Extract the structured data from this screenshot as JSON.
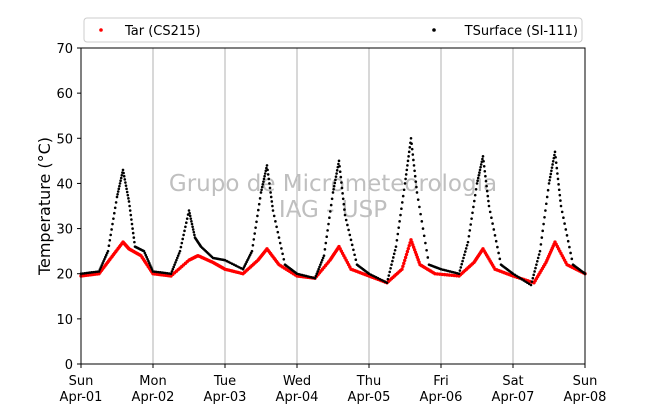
{
  "chart_data": {
    "type": "scatter",
    "title": "",
    "xlabel": "",
    "ylabel": "Temperature (°C)",
    "ylim": [
      0,
      70
    ],
    "yticks": [
      0,
      10,
      20,
      30,
      40,
      50,
      60,
      70
    ],
    "xlim": [
      "2018-04-01 00:00",
      "2018-04-08 00:00"
    ],
    "xticks": [
      {
        "day": "Sun",
        "date": "Apr-01"
      },
      {
        "day": "Mon",
        "date": "Apr-02"
      },
      {
        "day": "Tue",
        "date": "Apr-03"
      },
      {
        "day": "Wed",
        "date": "Apr-04"
      },
      {
        "day": "Thu",
        "date": "Apr-05"
      },
      {
        "day": "Fri",
        "date": "Apr-06"
      },
      {
        "day": "Sat",
        "date": "Apr-07"
      },
      {
        "day": "Sun",
        "date": "Apr-08"
      }
    ],
    "grid": "vertical",
    "legend": "top",
    "watermark": [
      "Grupo de Micrometeorologia",
      "IAG - USP"
    ],
    "series": [
      {
        "name": "Tar (CS215)",
        "color": "#ff0000",
        "x": [
          "Apr-01 00:00",
          "Apr-01 06:00",
          "Apr-01 10:00",
          "Apr-01 14:00",
          "Apr-01 16:00",
          "Apr-01 20:00",
          "Apr-02 00:00",
          "Apr-02 06:00",
          "Apr-02 12:00",
          "Apr-02 15:00",
          "Apr-02 20:00",
          "Apr-03 00:00",
          "Apr-03 06:00",
          "Apr-03 11:00",
          "Apr-03 14:00",
          "Apr-03 18:00",
          "Apr-04 00:00",
          "Apr-04 06:00",
          "Apr-04 11:00",
          "Apr-04 14:00",
          "Apr-04 18:00",
          "Apr-05 00:00",
          "Apr-05 06:00",
          "Apr-05 11:00",
          "Apr-05 14:00",
          "Apr-05 17:00",
          "Apr-05 22:00",
          "Apr-06 06:00",
          "Apr-06 11:00",
          "Apr-06 14:00",
          "Apr-06 18:00",
          "Apr-07 00:00",
          "Apr-07 07:00",
          "Apr-07 11:00",
          "Apr-07 14:00",
          "Apr-07 18:00",
          "Apr-08 00:00"
        ],
        "y": [
          19.5,
          20.0,
          23.5,
          27.0,
          25.5,
          24.0,
          20.0,
          19.5,
          23.0,
          24.0,
          22.5,
          21.0,
          20.0,
          23.0,
          25.5,
          22.0,
          19.5,
          19.0,
          23.0,
          26.0,
          21.0,
          19.5,
          18.0,
          21.0,
          27.5,
          22.0,
          20.0,
          19.5,
          22.5,
          25.5,
          21.0,
          19.5,
          18.0,
          22.5,
          27.0,
          22.0,
          20.0
        ]
      },
      {
        "name": "TSurface (SI-111)",
        "color": "#000000",
        "x": [
          "Apr-01 00:00",
          "Apr-01 06:00",
          "Apr-01 09:00",
          "Apr-01 12:00",
          "Apr-01 14:00",
          "Apr-01 16:00",
          "Apr-01 18:00",
          "Apr-01 21:00",
          "Apr-02 00:00",
          "Apr-02 06:00",
          "Apr-02 09:00",
          "Apr-02 12:00",
          "Apr-02 14:00",
          "Apr-02 16:00",
          "Apr-02 20:00",
          "Apr-03 00:00",
          "Apr-03 06:00",
          "Apr-03 09:00",
          "Apr-03 12:00",
          "Apr-03 14:00",
          "Apr-03 16:00",
          "Apr-03 20:00",
          "Apr-04 00:00",
          "Apr-04 06:00",
          "Apr-04 09:00",
          "Apr-04 12:00",
          "Apr-04 14:00",
          "Apr-04 16:00",
          "Apr-04 20:00",
          "Apr-05 00:00",
          "Apr-05 06:00",
          "Apr-05 09:00",
          "Apr-05 12:00",
          "Apr-05 14:00",
          "Apr-05 16:00",
          "Apr-05 20:00",
          "Apr-06 00:00",
          "Apr-06 06:00",
          "Apr-06 09:00",
          "Apr-06 12:00",
          "Apr-06 14:00",
          "Apr-06 16:00",
          "Apr-06 20:00",
          "Apr-07 00:00",
          "Apr-07 06:00",
          "Apr-07 09:00",
          "Apr-07 12:00",
          "Apr-07 14:00",
          "Apr-07 16:00",
          "Apr-07 20:00",
          "Apr-08 00:00"
        ],
        "y": [
          20.0,
          20.5,
          25.0,
          37.0,
          43.0,
          36.0,
          26.0,
          25.0,
          20.5,
          20.0,
          25.0,
          34.0,
          28.0,
          26.0,
          23.5,
          23.0,
          21.0,
          25.0,
          38.0,
          44.0,
          34.0,
          22.0,
          20.0,
          19.0,
          24.0,
          38.0,
          45.0,
          33.0,
          22.0,
          20.0,
          18.0,
          26.0,
          40.0,
          50.0,
          38.0,
          22.0,
          21.0,
          20.0,
          27.0,
          40.0,
          46.0,
          35.0,
          22.0,
          20.0,
          17.5,
          25.0,
          40.0,
          47.0,
          35.0,
          22.0,
          20.0
        ]
      }
    ]
  }
}
